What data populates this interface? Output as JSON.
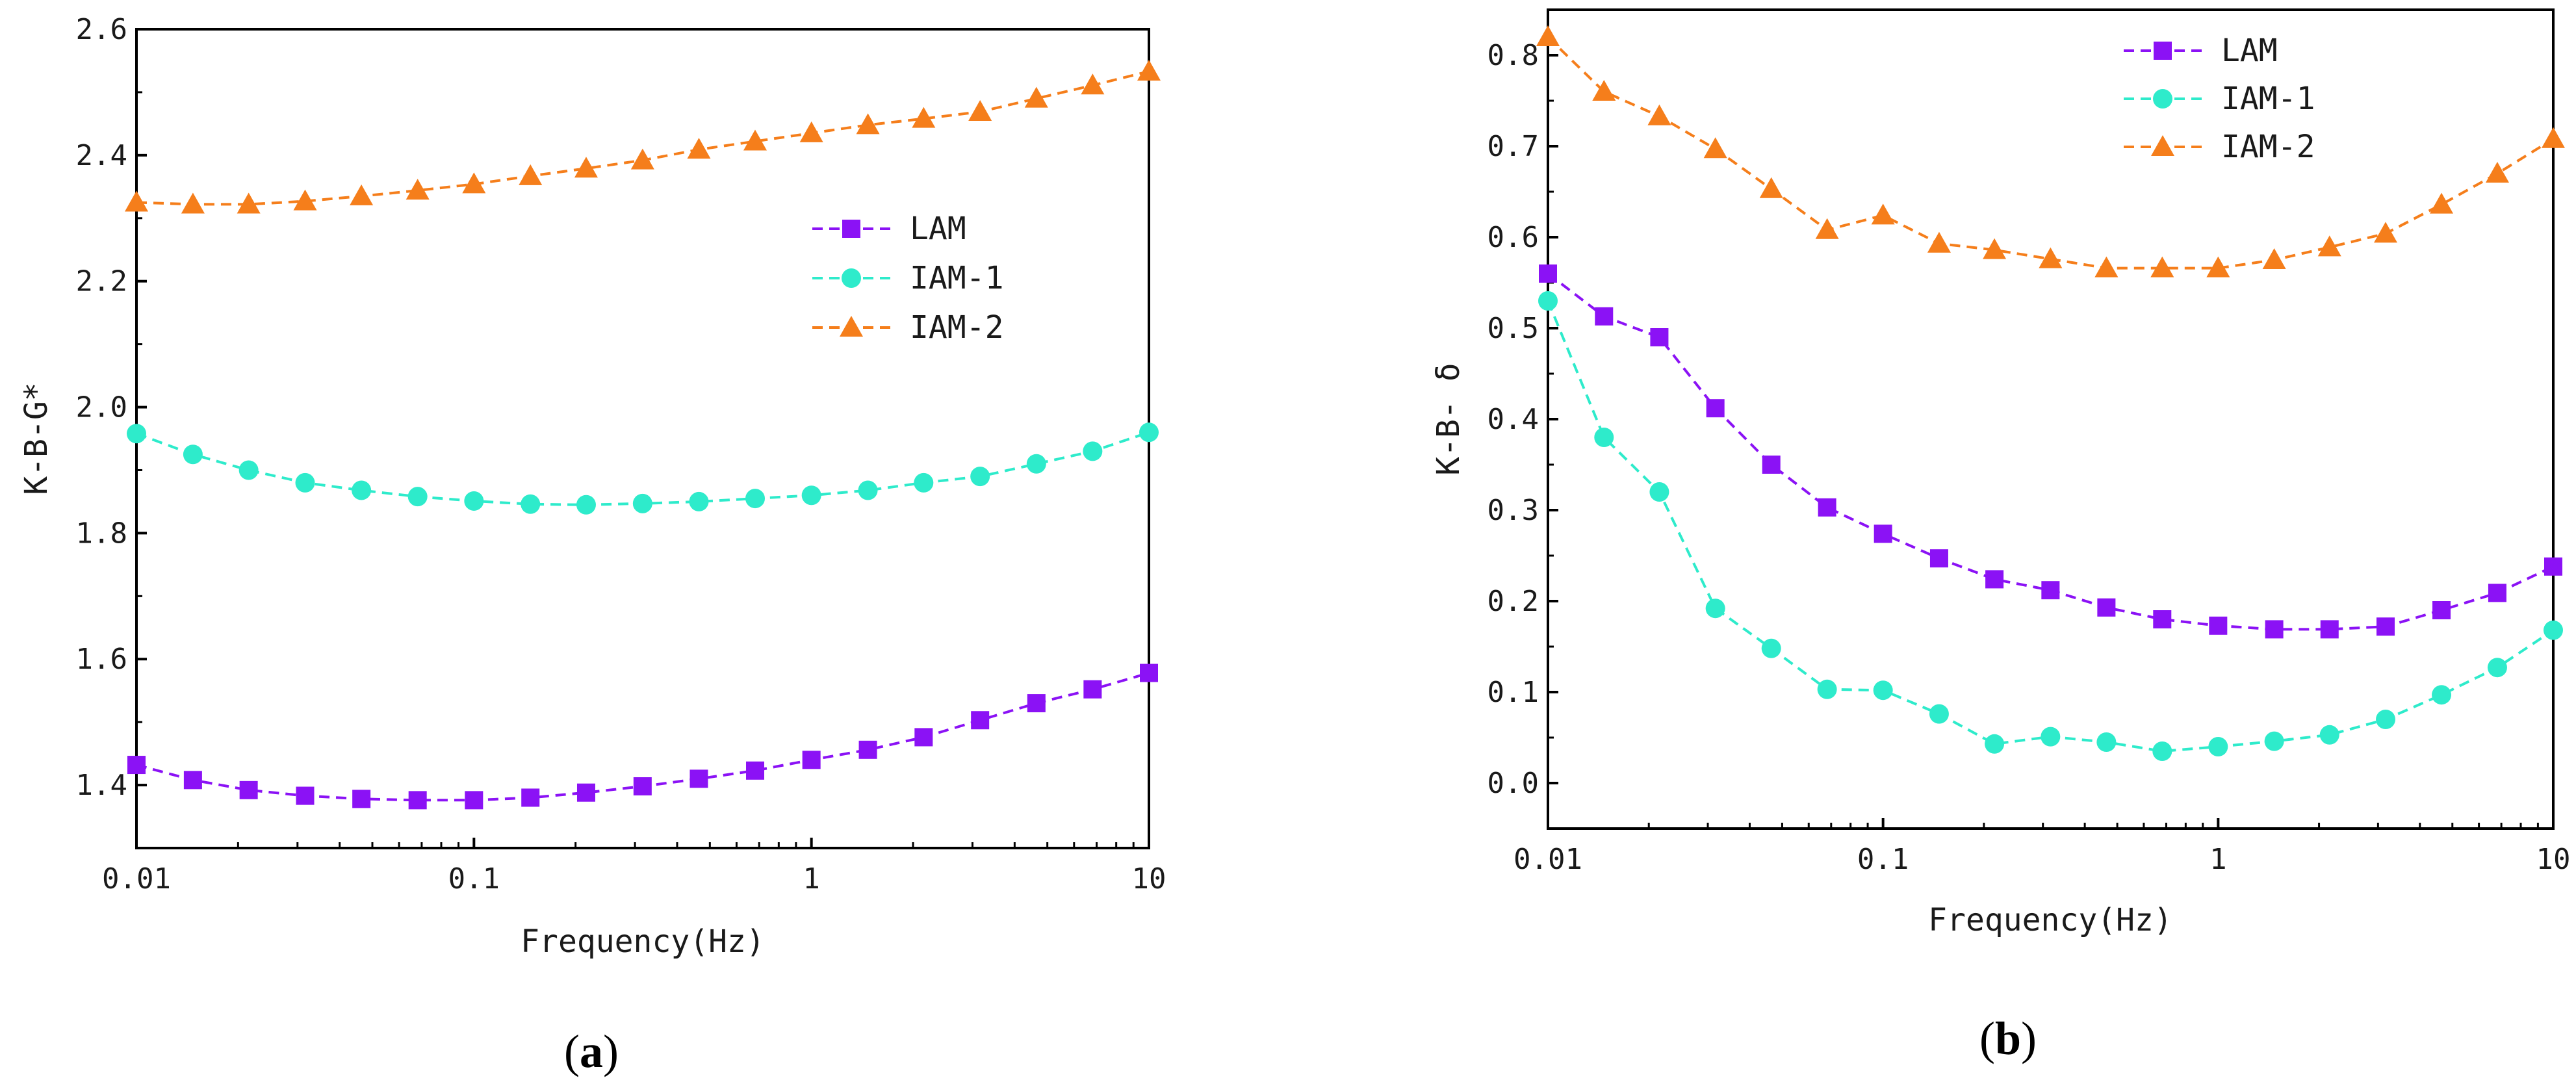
{
  "panels": [
    {
      "id": "a",
      "caption": {
        "open": "(",
        "letter": "a",
        "close": ")"
      },
      "legend_position": "center-right"
    },
    {
      "id": "b",
      "caption": {
        "open": "(",
        "letter": "b",
        "close": ")"
      },
      "legend_position": "top-center"
    }
  ],
  "colors": {
    "LAM": "#8B12F5",
    "IAM-1": "#2EEBCB",
    "IAM-2": "#F57E1B",
    "axis": "#000000"
  },
  "chart_data": [
    {
      "type": "line",
      "title": "",
      "xlabel": "Frequency(Hz)",
      "ylabel": "K-B-G*",
      "xscale": "log",
      "xlim": [
        0.01,
        10
      ],
      "ylim": [
        1.3,
        2.6
      ],
      "xticks": [
        0.01,
        0.1,
        1,
        10
      ],
      "xtick_labels": [
        "0.01",
        "0.1",
        "1",
        "10"
      ],
      "yticks": [
        1.4,
        1.6,
        1.8,
        2.0,
        2.2,
        2.4,
        2.6
      ],
      "ytick_labels": [
        "1.4",
        "1.6",
        "1.8",
        "2.0",
        "2.2",
        "2.4",
        "2.6"
      ],
      "x": [
        0.01,
        0.0147,
        0.0215,
        0.0316,
        0.0464,
        0.0681,
        0.1,
        0.147,
        0.215,
        0.316,
        0.464,
        0.681,
        1,
        1.47,
        2.15,
        3.16,
        4.64,
        6.81,
        10
      ],
      "series": [
        {
          "name": "LAM",
          "marker": "square",
          "values": [
            1.432,
            1.408,
            1.392,
            1.383,
            1.378,
            1.376,
            1.376,
            1.38,
            1.388,
            1.398,
            1.41,
            1.423,
            1.44,
            1.456,
            1.476,
            1.503,
            1.53,
            1.552,
            1.578
          ]
        },
        {
          "name": "IAM-1",
          "marker": "circle",
          "values": [
            1.958,
            1.925,
            1.9,
            1.88,
            1.868,
            1.858,
            1.851,
            1.846,
            1.845,
            1.847,
            1.85,
            1.855,
            1.86,
            1.868,
            1.88,
            1.89,
            1.91,
            1.93,
            1.96
          ]
        },
        {
          "name": "IAM-2",
          "marker": "triangle",
          "values": [
            2.325,
            2.322,
            2.322,
            2.327,
            2.335,
            2.344,
            2.354,
            2.367,
            2.379,
            2.392,
            2.409,
            2.422,
            2.435,
            2.448,
            2.458,
            2.469,
            2.49,
            2.511,
            2.533
          ]
        }
      ]
    },
    {
      "type": "line",
      "title": "",
      "xlabel": "Frequency(Hz)",
      "ylabel": "K-B- δ",
      "xscale": "log",
      "xlim": [
        0.01,
        10
      ],
      "ylim": [
        -0.05,
        0.85
      ],
      "xticks": [
        0.01,
        0.1,
        1,
        10
      ],
      "xtick_labels": [
        "0.01",
        "0.1",
        "1",
        "10"
      ],
      "yticks": [
        0.0,
        0.1,
        0.2,
        0.3,
        0.4,
        0.5,
        0.6,
        0.7,
        0.8
      ],
      "ytick_labels": [
        "0.0",
        "0.1",
        "0.2",
        "0.3",
        "0.4",
        "0.5",
        "0.6",
        "0.7",
        "0.8"
      ],
      "x": [
        0.01,
        0.0147,
        0.0215,
        0.0316,
        0.0464,
        0.0681,
        0.1,
        0.147,
        0.215,
        0.316,
        0.464,
        0.681,
        1,
        1.47,
        2.15,
        3.16,
        4.64,
        6.81,
        10
      ],
      "series": [
        {
          "name": "LAM",
          "marker": "square",
          "values": [
            0.56,
            0.513,
            0.49,
            0.412,
            0.35,
            0.303,
            0.274,
            0.247,
            0.224,
            0.212,
            0.193,
            0.18,
            0.173,
            0.169,
            0.169,
            0.172,
            0.19,
            0.209,
            0.238
          ]
        },
        {
          "name": "IAM-1",
          "marker": "circle",
          "values": [
            0.53,
            0.38,
            0.32,
            0.192,
            0.148,
            0.103,
            0.102,
            0.076,
            0.043,
            0.051,
            0.045,
            0.035,
            0.04,
            0.046,
            0.053,
            0.07,
            0.097,
            0.127,
            0.168
          ]
        },
        {
          "name": "IAM-2",
          "marker": "triangle",
          "values": [
            0.82,
            0.76,
            0.733,
            0.697,
            0.653,
            0.608,
            0.624,
            0.593,
            0.586,
            0.576,
            0.566,
            0.566,
            0.566,
            0.575,
            0.589,
            0.604,
            0.636,
            0.67,
            0.708
          ]
        }
      ]
    }
  ]
}
